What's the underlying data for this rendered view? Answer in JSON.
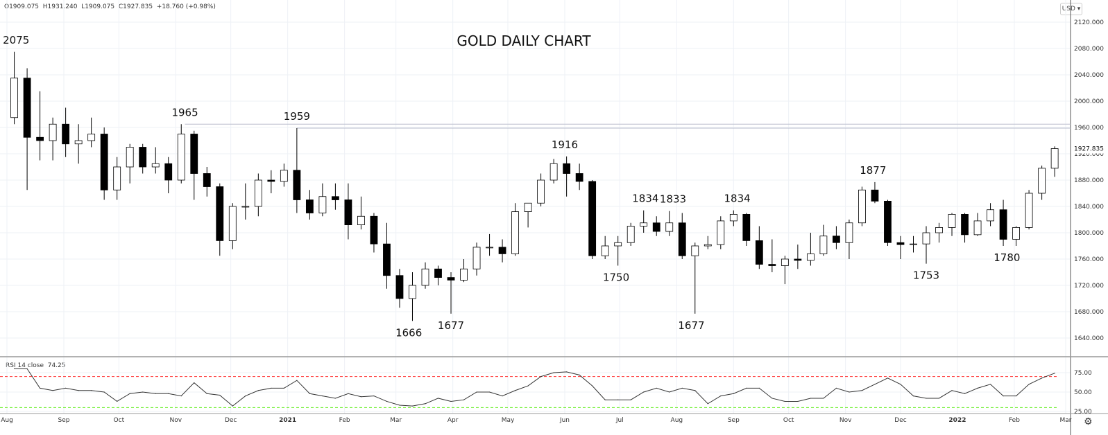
{
  "header": {
    "ohlc_text": "O1909.075  H1931.240  L1909.075  C1927.835  +18.760 (+0.98%)",
    "currency": "USD",
    "currency_icon": "chevron-down-icon"
  },
  "rsi_legend": {
    "label": "RSI 14 close",
    "value": "74.25"
  },
  "settings_icon": "gear-icon",
  "chart_data": [
    {
      "type": "candlestick",
      "title": "GOLD DAILY CHART",
      "ylim": [
        1600,
        2140
      ],
      "yticks": [
        "2120.000",
        "2080.000",
        "2040.000",
        "2000.000",
        "1960.000",
        "1920.000",
        "1880.000",
        "1840.000",
        "1800.000",
        "1760.000",
        "1720.000",
        "1680.000",
        "1640.000"
      ],
      "last_price_label": "1927.835",
      "last_price": 1927.835,
      "xlim": [
        "2020-08-01",
        "2022-03-01"
      ],
      "xticks": [
        {
          "date": "2020-08-01",
          "label": "Aug"
        },
        {
          "date": "2020-09-01",
          "label": "Sep"
        },
        {
          "date": "2020-10-01",
          "label": "Oct"
        },
        {
          "date": "2020-11-01",
          "label": "Nov"
        },
        {
          "date": "2020-12-01",
          "label": "Dec"
        },
        {
          "date": "2021-01-01",
          "label": "2021",
          "bold": true
        },
        {
          "date": "2021-02-01",
          "label": "Feb"
        },
        {
          "date": "2021-03-01",
          "label": "Mar"
        },
        {
          "date": "2021-04-01",
          "label": "Apr"
        },
        {
          "date": "2021-05-01",
          "label": "May"
        },
        {
          "date": "2021-06-01",
          "label": "Jun"
        },
        {
          "date": "2021-07-01",
          "label": "Jul"
        },
        {
          "date": "2021-08-01",
          "label": "Aug"
        },
        {
          "date": "2021-09-01",
          "label": "Sep"
        },
        {
          "date": "2021-10-01",
          "label": "Oct"
        },
        {
          "date": "2021-11-01",
          "label": "Nov"
        },
        {
          "date": "2021-12-01",
          "label": "Dec"
        },
        {
          "date": "2022-01-01",
          "label": "2022",
          "bold": true
        },
        {
          "date": "2022-02-01",
          "label": "Feb"
        },
        {
          "date": "2022-03-01",
          "label": "Mar"
        }
      ],
      "grid": true,
      "colors": {
        "up_body": "#ffffff",
        "down_body": "#000000",
        "wick": "#000000",
        "grid": "#eef1f6",
        "level_line": "#b8bccc"
      },
      "columns": [
        "week",
        "open",
        "high",
        "low",
        "close"
      ],
      "candles": [
        [
          "2020-08-03",
          1975,
          2075,
          1965,
          2035
        ],
        [
          "2020-08-10",
          2035,
          2050,
          1865,
          1945
        ],
        [
          "2020-08-17",
          1945,
          2015,
          1910,
          1940
        ],
        [
          "2020-08-24",
          1940,
          1975,
          1910,
          1965
        ],
        [
          "2020-08-31",
          1965,
          1990,
          1915,
          1935
        ],
        [
          "2020-09-07",
          1935,
          1965,
          1905,
          1940
        ],
        [
          "2020-09-14",
          1940,
          1975,
          1930,
          1950
        ],
        [
          "2020-09-21",
          1950,
          1960,
          1850,
          1865
        ],
        [
          "2020-09-28",
          1865,
          1915,
          1850,
          1900
        ],
        [
          "2020-10-05",
          1900,
          1935,
          1875,
          1930
        ],
        [
          "2020-10-12",
          1930,
          1935,
          1890,
          1900
        ],
        [
          "2020-10-19",
          1900,
          1930,
          1890,
          1905
        ],
        [
          "2020-10-26",
          1905,
          1915,
          1860,
          1880
        ],
        [
          "2020-11-02",
          1880,
          1965,
          1875,
          1950
        ],
        [
          "2020-11-09",
          1950,
          1955,
          1850,
          1890
        ],
        [
          "2020-11-16",
          1890,
          1900,
          1855,
          1870
        ],
        [
          "2020-11-23",
          1870,
          1875,
          1765,
          1788
        ],
        [
          "2020-11-30",
          1788,
          1845,
          1775,
          1840
        ],
        [
          "2020-12-07",
          1840,
          1875,
          1820,
          1840
        ],
        [
          "2020-12-14",
          1840,
          1890,
          1825,
          1880
        ],
        [
          "2020-12-21",
          1880,
          1895,
          1860,
          1878
        ],
        [
          "2020-12-28",
          1878,
          1905,
          1870,
          1895
        ],
        [
          "2021-01-04",
          1895,
          1959,
          1830,
          1850
        ],
        [
          "2021-01-11",
          1850,
          1865,
          1820,
          1830
        ],
        [
          "2021-01-18",
          1830,
          1875,
          1825,
          1855
        ],
        [
          "2021-01-25",
          1855,
          1875,
          1835,
          1850
        ],
        [
          "2021-02-01",
          1850,
          1875,
          1790,
          1812
        ],
        [
          "2021-02-08",
          1812,
          1855,
          1805,
          1825
        ],
        [
          "2021-02-15",
          1825,
          1830,
          1770,
          1783
        ],
        [
          "2021-02-22",
          1783,
          1815,
          1715,
          1735
        ],
        [
          "2021-03-01",
          1735,
          1745,
          1686,
          1700
        ],
        [
          "2021-03-08",
          1700,
          1740,
          1666,
          1720
        ],
        [
          "2021-03-15",
          1720,
          1755,
          1715,
          1745
        ],
        [
          "2021-03-22",
          1745,
          1750,
          1720,
          1732
        ],
        [
          "2021-03-29",
          1732,
          1740,
          1677,
          1728
        ],
        [
          "2021-04-05",
          1728,
          1760,
          1725,
          1745
        ],
        [
          "2021-04-12",
          1745,
          1785,
          1735,
          1778
        ],
        [
          "2021-04-19",
          1778,
          1798,
          1765,
          1778
        ],
        [
          "2021-04-26",
          1778,
          1790,
          1755,
          1768
        ],
        [
          "2021-05-03",
          1768,
          1845,
          1765,
          1832
        ],
        [
          "2021-05-10",
          1832,
          1845,
          1808,
          1845
        ],
        [
          "2021-05-17",
          1845,
          1890,
          1840,
          1880
        ],
        [
          "2021-05-24",
          1880,
          1912,
          1875,
          1905
        ],
        [
          "2021-05-31",
          1905,
          1916,
          1855,
          1890
        ],
        [
          "2021-06-07",
          1890,
          1905,
          1865,
          1878
        ],
        [
          "2021-06-14",
          1878,
          1880,
          1760,
          1765
        ],
        [
          "2021-06-21",
          1765,
          1795,
          1760,
          1780
        ],
        [
          "2021-06-28",
          1780,
          1795,
          1750,
          1785
        ],
        [
          "2021-07-05",
          1785,
          1815,
          1780,
          1810
        ],
        [
          "2021-07-12",
          1810,
          1834,
          1800,
          1815
        ],
        [
          "2021-07-19",
          1815,
          1825,
          1795,
          1802
        ],
        [
          "2021-07-26",
          1802,
          1833,
          1795,
          1815
        ],
        [
          "2021-08-02",
          1815,
          1830,
          1760,
          1765
        ],
        [
          "2021-08-09",
          1765,
          1785,
          1677,
          1780
        ],
        [
          "2021-08-16",
          1780,
          1795,
          1775,
          1782
        ],
        [
          "2021-08-23",
          1782,
          1825,
          1775,
          1818
        ],
        [
          "2021-08-30",
          1818,
          1834,
          1810,
          1828
        ],
        [
          "2021-09-06",
          1828,
          1830,
          1780,
          1788
        ],
        [
          "2021-09-13",
          1788,
          1810,
          1745,
          1752
        ],
        [
          "2021-09-20",
          1752,
          1790,
          1740,
          1750
        ],
        [
          "2021-09-27",
          1750,
          1765,
          1722,
          1760
        ],
        [
          "2021-10-04",
          1760,
          1782,
          1745,
          1758
        ],
        [
          "2021-10-11",
          1758,
          1800,
          1750,
          1768
        ],
        [
          "2021-10-18",
          1768,
          1812,
          1765,
          1795
        ],
        [
          "2021-10-25",
          1795,
          1810,
          1775,
          1785
        ],
        [
          "2021-11-01",
          1785,
          1820,
          1760,
          1815
        ],
        [
          "2021-11-08",
          1815,
          1870,
          1810,
          1865
        ],
        [
          "2021-11-15",
          1865,
          1877,
          1845,
          1848
        ],
        [
          "2021-11-22",
          1848,
          1850,
          1780,
          1785
        ],
        [
          "2021-11-29",
          1785,
          1795,
          1760,
          1782
        ],
        [
          "2021-12-06",
          1782,
          1795,
          1770,
          1783
        ],
        [
          "2021-12-13",
          1783,
          1810,
          1753,
          1800
        ],
        [
          "2021-12-20",
          1800,
          1815,
          1785,
          1808
        ],
        [
          "2021-12-27",
          1808,
          1830,
          1795,
          1828
        ],
        [
          "2022-01-03",
          1828,
          1830,
          1785,
          1797
        ],
        [
          "2022-01-10",
          1797,
          1830,
          1795,
          1818
        ],
        [
          "2022-01-17",
          1818,
          1845,
          1810,
          1835
        ],
        [
          "2022-01-24",
          1835,
          1850,
          1780,
          1790
        ],
        [
          "2022-01-31",
          1790,
          1810,
          1780,
          1808
        ],
        [
          "2022-02-07",
          1808,
          1865,
          1805,
          1860
        ],
        [
          "2022-02-14",
          1860,
          1902,
          1850,
          1898
        ],
        [
          "2022-02-21",
          1898,
          1931.24,
          1885,
          1927.835
        ]
      ],
      "level_lines": [
        {
          "price": 1965,
          "from": "2020-11-06"
        },
        {
          "price": 1959,
          "from": "2021-01-06"
        }
      ],
      "annotations": [
        {
          "label": "2075",
          "date": "2020-08-06",
          "price": 2075,
          "pos": "above"
        },
        {
          "label": "1965",
          "date": "2020-11-06",
          "price": 1965,
          "pos": "above"
        },
        {
          "label": "1959",
          "date": "2021-01-06",
          "price": 1959,
          "pos": "above"
        },
        {
          "label": "1916",
          "date": "2021-06-01",
          "price": 1916,
          "pos": "above"
        },
        {
          "label": "1834",
          "date": "2021-07-15",
          "price": 1834,
          "pos": "above"
        },
        {
          "label": "1833",
          "date": "2021-07-30",
          "price": 1833,
          "pos": "above"
        },
        {
          "label": "1834",
          "date": "2021-09-03",
          "price": 1834,
          "pos": "above"
        },
        {
          "label": "1877",
          "date": "2021-11-16",
          "price": 1877,
          "pos": "above"
        },
        {
          "label": "1666",
          "date": "2021-03-08",
          "price": 1666,
          "pos": "below"
        },
        {
          "label": "1677",
          "date": "2021-03-31",
          "price": 1677,
          "pos": "below"
        },
        {
          "label": "1750",
          "date": "2021-06-29",
          "price": 1750,
          "pos": "below"
        },
        {
          "label": "1677",
          "date": "2021-08-09",
          "price": 1677,
          "pos": "below"
        },
        {
          "label": "1753",
          "date": "2021-12-15",
          "price": 1753,
          "pos": "below"
        },
        {
          "label": "1780",
          "date": "2022-01-28",
          "price": 1780,
          "pos": "below"
        }
      ]
    },
    {
      "type": "line",
      "name": "RSI 14 close",
      "ylim": [
        18,
        92
      ],
      "yticks": [
        "75.00",
        "50.00",
        "25.00"
      ],
      "levels": [
        {
          "value": 70,
          "color": "#ff3333"
        },
        {
          "value": 30,
          "color": "#66ee22"
        }
      ],
      "line_color": "#333333",
      "values": [
        80,
        80,
        55,
        52,
        55,
        52,
        52,
        50,
        38,
        48,
        50,
        48,
        48,
        45,
        62,
        48,
        46,
        32,
        45,
        52,
        55,
        55,
        65,
        48,
        45,
        42,
        48,
        44,
        45,
        38,
        33,
        32,
        35,
        42,
        38,
        40,
        50,
        50,
        45,
        52,
        58,
        70,
        75,
        76,
        72,
        58,
        40,
        40,
        40,
        50,
        55,
        50,
        55,
        52,
        35,
        45,
        48,
        55,
        55,
        42,
        38,
        38,
        42,
        42,
        55,
        50,
        52,
        60,
        68,
        60,
        45,
        42,
        42,
        52,
        48,
        55,
        60,
        45,
        45,
        60,
        68,
        74.25
      ]
    }
  ]
}
